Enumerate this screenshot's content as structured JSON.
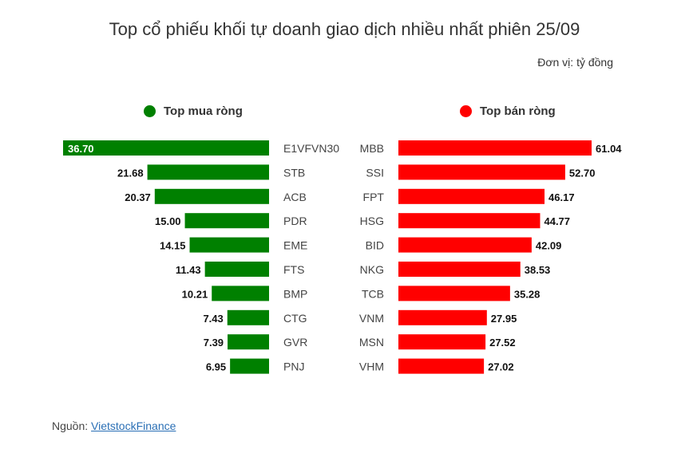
{
  "title": "Top cổ phiếu khối tự doanh giao dịch nhiều nhất phiên 25/09",
  "unit": "Đơn vị: tỷ đồng",
  "source_prefix": "Nguồn: ",
  "source_link": "VietstockFinance",
  "colors": {
    "buy": "#008000",
    "sell": "#ff0000"
  },
  "chart_data": [
    {
      "type": "bar",
      "legend": "Top mua ròng",
      "categories": [
        "E1VFVN30",
        "STB",
        "ACB",
        "PDR",
        "EME",
        "FTS",
        "BMP",
        "CTG",
        "GVR",
        "PNJ"
      ],
      "values": [
        36.7,
        21.68,
        20.37,
        15.0,
        14.15,
        11.43,
        10.21,
        7.43,
        7.39,
        6.95
      ],
      "labels": [
        "36.70",
        "21.68",
        "20.37",
        "15.00",
        "14.15",
        "11.43",
        "10.21",
        "7.43",
        "7.39",
        "6.95"
      ]
    },
    {
      "type": "bar",
      "legend": "Top bán ròng",
      "categories": [
        "MBB",
        "SSI",
        "FPT",
        "HSG",
        "BID",
        "NKG",
        "TCB",
        "VNM",
        "MSN",
        "VHM"
      ],
      "values": [
        61.04,
        52.7,
        46.17,
        44.77,
        42.09,
        38.53,
        35.28,
        27.95,
        27.52,
        27.02
      ],
      "labels": [
        "61.04",
        "52.70",
        "46.17",
        "44.77",
        "42.09",
        "38.53",
        "35.28",
        "27.95",
        "27.52",
        "27.02"
      ]
    }
  ]
}
